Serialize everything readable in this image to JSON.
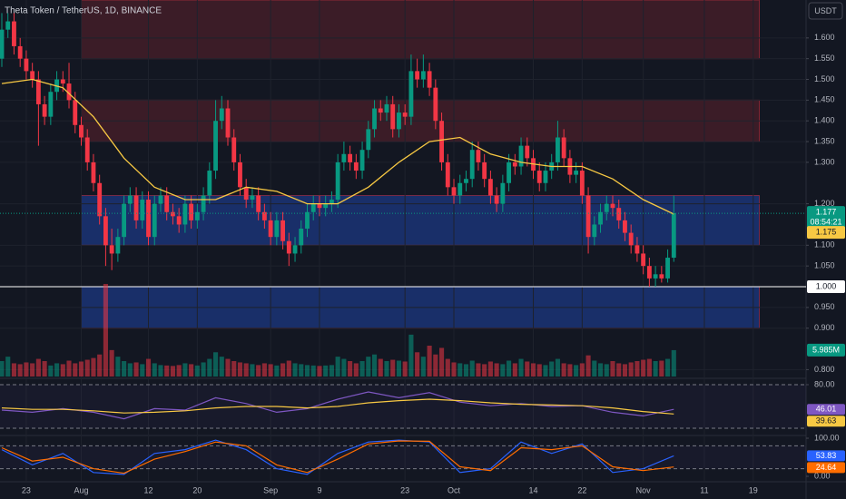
{
  "header": {
    "title": "Theta Token / TetherUS, 1D, BINANCE",
    "quote_currency": "USDT",
    "countdown": "08:54:21"
  },
  "chart_data": [
    {
      "type": "candlestick",
      "up_color": "#089981",
      "down_color": "#f23645",
      "grid": true,
      "xlim": [
        -0.297,
        131.65
      ],
      "ylim": [
        0.7834,
        1.6915
      ],
      "xticks": [
        {
          "value": 4,
          "label": "23"
        },
        {
          "value": 13,
          "label": "Aug"
        },
        {
          "value": 24,
          "label": "12"
        },
        {
          "value": 32,
          "label": "20"
        },
        {
          "value": 44,
          "label": "Sep"
        },
        {
          "value": 52,
          "label": "9"
        },
        {
          "value": 66,
          "label": "23"
        },
        {
          "value": 74,
          "label": "Oct"
        },
        {
          "value": 87,
          "label": "14"
        },
        {
          "value": 95,
          "label": "22"
        },
        {
          "value": 105,
          "label": "Nov"
        },
        {
          "value": 115,
          "label": "11"
        },
        {
          "value": 123,
          "label": "19"
        }
      ],
      "yticks": [
        {
          "value": 1.6,
          "label": "1.600"
        },
        {
          "value": 1.55,
          "label": "1.550"
        },
        {
          "value": 1.5,
          "label": "1.500"
        },
        {
          "value": 1.45,
          "label": "1.450"
        },
        {
          "value": 1.4,
          "label": "1.400"
        },
        {
          "value": 1.35,
          "label": "1.350"
        },
        {
          "value": 1.3,
          "label": "1.300"
        },
        {
          "value": 1.2,
          "label": "1.200"
        },
        {
          "value": 1.1,
          "label": "1.100"
        },
        {
          "value": 1.05,
          "label": "1.050"
        },
        {
          "value": 0.95,
          "label": "0.950"
        },
        {
          "value": 0.9,
          "label": "0.900"
        },
        {
          "value": 0.8,
          "label": "0.800"
        }
      ],
      "open": [
        1.55,
        1.62,
        1.64,
        1.58,
        1.55,
        1.52,
        1.5,
        1.44,
        1.41,
        1.47,
        1.5,
        1.49,
        1.45,
        1.39,
        1.36,
        1.3,
        1.25,
        1.17,
        1.1,
        1.08,
        1.12,
        1.2,
        1.22,
        1.16,
        1.21,
        1.12,
        1.2,
        1.22,
        1.18,
        1.17,
        1.15,
        1.2,
        1.16,
        1.18,
        1.22,
        1.28,
        1.4,
        1.43,
        1.36,
        1.3,
        1.24,
        1.21,
        1.22,
        1.18,
        1.16,
        1.12,
        1.16,
        1.11,
        1.08,
        1.1,
        1.14,
        1.18,
        1.2,
        1.19,
        1.2,
        1.21,
        1.3,
        1.32,
        1.3,
        1.28,
        1.33,
        1.38,
        1.43,
        1.42,
        1.44,
        1.38,
        1.42,
        1.41,
        1.52,
        1.5,
        1.52,
        1.48,
        1.4,
        1.3,
        1.24,
        1.22,
        1.25,
        1.26,
        1.33,
        1.3,
        1.26,
        1.22,
        1.2,
        1.25,
        1.3,
        1.29,
        1.34,
        1.31,
        1.28,
        1.25,
        1.28,
        1.3,
        1.36,
        1.31,
        1.27,
        1.28,
        1.22,
        1.12,
        1.15,
        1.18,
        1.2,
        1.19,
        1.16,
        1.13,
        1.1,
        1.08,
        1.05,
        1.02,
        1.03,
        1.02,
        1.07
      ],
      "high": [
        1.66,
        1.66,
        1.66,
        1.6,
        1.57,
        1.54,
        1.52,
        1.46,
        1.49,
        1.52,
        1.52,
        1.54,
        1.47,
        1.41,
        1.38,
        1.32,
        1.27,
        1.19,
        1.14,
        1.14,
        1.22,
        1.24,
        1.24,
        1.23,
        1.23,
        1.22,
        1.24,
        1.24,
        1.2,
        1.19,
        1.22,
        1.22,
        1.2,
        1.24,
        1.3,
        1.45,
        1.46,
        1.45,
        1.38,
        1.32,
        1.26,
        1.24,
        1.24,
        1.2,
        1.18,
        1.18,
        1.18,
        1.13,
        1.12,
        1.16,
        1.2,
        1.22,
        1.22,
        1.22,
        1.23,
        1.32,
        1.35,
        1.34,
        1.32,
        1.35,
        1.4,
        1.45,
        1.45,
        1.46,
        1.46,
        1.44,
        1.44,
        1.56,
        1.55,
        1.56,
        1.54,
        1.5,
        1.42,
        1.32,
        1.26,
        1.27,
        1.28,
        1.35,
        1.35,
        1.32,
        1.28,
        1.24,
        1.27,
        1.32,
        1.32,
        1.36,
        1.36,
        1.33,
        1.3,
        1.3,
        1.32,
        1.4,
        1.38,
        1.33,
        1.3,
        1.3,
        1.24,
        1.17,
        1.2,
        1.22,
        1.22,
        1.21,
        1.18,
        1.15,
        1.12,
        1.1,
        1.07,
        1.05,
        1.05,
        1.09,
        1.22
      ],
      "low": [
        1.53,
        1.6,
        1.56,
        1.53,
        1.5,
        1.48,
        1.34,
        1.39,
        1.39,
        1.45,
        1.47,
        1.43,
        1.37,
        1.34,
        1.28,
        1.23,
        1.15,
        1.05,
        1.04,
        1.06,
        1.1,
        1.18,
        1.14,
        1.14,
        1.1,
        1.1,
        1.18,
        1.16,
        1.15,
        1.13,
        1.13,
        1.14,
        1.14,
        1.16,
        1.2,
        1.26,
        1.38,
        1.34,
        1.28,
        1.22,
        1.19,
        1.19,
        1.16,
        1.14,
        1.1,
        1.1,
        1.09,
        1.05,
        1.06,
        1.08,
        1.12,
        1.16,
        1.17,
        1.17,
        1.18,
        1.19,
        1.28,
        1.28,
        1.26,
        1.26,
        1.31,
        1.36,
        1.4,
        1.4,
        1.36,
        1.36,
        1.39,
        1.39,
        1.48,
        1.48,
        1.46,
        1.38,
        1.28,
        1.22,
        1.2,
        1.2,
        1.23,
        1.24,
        1.28,
        1.24,
        1.2,
        1.18,
        1.18,
        1.23,
        1.27,
        1.27,
        1.29,
        1.26,
        1.23,
        1.23,
        1.26,
        1.28,
        1.29,
        1.25,
        1.25,
        1.2,
        1.08,
        1.1,
        1.13,
        1.16,
        1.17,
        1.14,
        1.11,
        1.08,
        1.06,
        1.03,
        1.0,
        1.0,
        1.01,
        1.01,
        1.06
      ],
      "close": [
        1.62,
        1.64,
        1.58,
        1.55,
        1.52,
        1.5,
        1.44,
        1.41,
        1.47,
        1.5,
        1.49,
        1.45,
        1.39,
        1.36,
        1.3,
        1.25,
        1.17,
        1.1,
        1.08,
        1.12,
        1.2,
        1.22,
        1.16,
        1.21,
        1.12,
        1.2,
        1.22,
        1.18,
        1.17,
        1.15,
        1.2,
        1.16,
        1.18,
        1.22,
        1.28,
        1.4,
        1.43,
        1.36,
        1.3,
        1.24,
        1.21,
        1.22,
        1.18,
        1.16,
        1.12,
        1.16,
        1.11,
        1.08,
        1.1,
        1.14,
        1.18,
        1.2,
        1.19,
        1.2,
        1.21,
        1.3,
        1.32,
        1.3,
        1.28,
        1.33,
        1.38,
        1.43,
        1.42,
        1.44,
        1.38,
        1.42,
        1.41,
        1.52,
        1.5,
        1.52,
        1.48,
        1.4,
        1.3,
        1.24,
        1.22,
        1.25,
        1.26,
        1.33,
        1.3,
        1.26,
        1.22,
        1.2,
        1.25,
        1.3,
        1.29,
        1.34,
        1.31,
        1.28,
        1.25,
        1.28,
        1.3,
        1.36,
        1.31,
        1.27,
        1.28,
        1.22,
        1.12,
        1.15,
        1.18,
        1.2,
        1.19,
        1.16,
        1.13,
        1.1,
        1.08,
        1.05,
        1.02,
        1.03,
        1.02,
        1.07,
        1.177
      ],
      "moving_average": {
        "color": "#f7c843",
        "x": [
          0,
          5,
          10,
          15,
          20,
          25,
          30,
          35,
          40,
          45,
          50,
          55,
          60,
          65,
          70,
          75,
          80,
          85,
          90,
          95,
          100,
          105,
          110
        ],
        "values": [
          1.49,
          1.5,
          1.48,
          1.41,
          1.31,
          1.24,
          1.21,
          1.21,
          1.24,
          1.23,
          1.2,
          1.2,
          1.24,
          1.3,
          1.35,
          1.36,
          1.32,
          1.3,
          1.29,
          1.29,
          1.26,
          1.21,
          1.175
        ]
      },
      "zones": [
        {
          "from": 1.55,
          "to": 1.7,
          "start": 13,
          "end": 124,
          "color": "#f23645"
        },
        {
          "from": 1.35,
          "to": 1.45,
          "start": 13,
          "end": 124,
          "color": "#f23645"
        },
        {
          "from": 1.1,
          "to": 1.22,
          "start": 13,
          "end": 124,
          "color": "#2962ff"
        },
        {
          "from": 0.9,
          "to": 1.0,
          "start": 13,
          "end": 124,
          "color": "#2962ff"
        }
      ],
      "hline": {
        "value": 1,
        "label": "1.000",
        "color": "#ffffff"
      }
    },
    {
      "type": "bar",
      "up_color": "#089981",
      "down_color": "#f23645",
      "ylim": [
        0,
        21
      ],
      "values": [
        3.5,
        4.5,
        3.0,
        2.8,
        3.2,
        3.0,
        4.0,
        3.5,
        2.5,
        3.0,
        2.8,
        3.6,
        3.0,
        3.4,
        3.8,
        4.2,
        5.0,
        21,
        6.0,
        4.5,
        3.5,
        3.0,
        3.2,
        2.8,
        4.0,
        3.0,
        2.6,
        2.5,
        2.4,
        2.6,
        3.0,
        2.8,
        2.5,
        3.2,
        4.0,
        5.5,
        4.5,
        4.0,
        3.5,
        3.2,
        3.0,
        2.8,
        2.6,
        3.0,
        2.8,
        2.5,
        3.0,
        3.6,
        3.0,
        2.8,
        2.6,
        2.5,
        2.4,
        2.5,
        2.6,
        4.5,
        4.0,
        3.5,
        3.0,
        3.5,
        4.5,
        5.0,
        4.0,
        3.5,
        3.8,
        3.6,
        3.4,
        9.5,
        5.5,
        4.5,
        7.0,
        5.0,
        6.5,
        4.0,
        3.2,
        3.0,
        2.8,
        3.6,
        3.0,
        2.8,
        3.4,
        3.0,
        2.8,
        3.6,
        3.0,
        4.0,
        3.4,
        3.0,
        2.8,
        2.6,
        3.4,
        4.0,
        3.0,
        2.8,
        2.6,
        3.0,
        4.8,
        3.6,
        3.0,
        2.8,
        3.5,
        3.0,
        2.8,
        3.2,
        3.5,
        3.8,
        4.0,
        3.5,
        3.6,
        4.0,
        5.985
      ],
      "last_value_label": "5.985M"
    },
    {
      "type": "line",
      "ylim": [
        10,
        87.5
      ],
      "yticks": [
        {
          "value": 80,
          "label": "80.00"
        }
      ],
      "levels": [
        80,
        20
      ],
      "x": [
        0,
        5,
        10,
        15,
        20,
        25,
        30,
        35,
        40,
        45,
        50,
        55,
        60,
        65,
        70,
        75,
        80,
        85,
        90,
        95,
        100,
        105,
        110
      ],
      "series": [
        {
          "color": "#7e57c2",
          "values": [
            45,
            42,
            47,
            42,
            33,
            47,
            45,
            62,
            54,
            42,
            47,
            60,
            70,
            62,
            69,
            56,
            51,
            54,
            50,
            51,
            42,
            37,
            46.01
          ]
        },
        {
          "color": "#f7c843",
          "values": [
            48,
            46,
            46,
            44,
            41,
            42,
            44,
            48,
            50,
            50,
            48,
            50,
            55,
            58,
            60,
            58,
            55,
            53,
            52,
            51,
            48,
            43,
            39.63
          ]
        }
      ]
    },
    {
      "type": "line",
      "ylim": [
        -11.9,
        104.8
      ],
      "yticks": [
        {
          "value": 100,
          "label": "100.00"
        },
        {
          "value": 0,
          "label": "0.00"
        }
      ],
      "levels": [
        80,
        20
      ],
      "x": [
        0,
        5,
        10,
        15,
        20,
        25,
        30,
        35,
        40,
        45,
        50,
        55,
        60,
        65,
        70,
        75,
        80,
        85,
        90,
        95,
        100,
        105,
        110
      ],
      "series": [
        {
          "color": "#2962ff",
          "values": [
            70,
            30,
            60,
            10,
            5,
            60,
            70,
            95,
            70,
            20,
            5,
            60,
            90,
            95,
            90,
            10,
            20,
            90,
            60,
            85,
            10,
            20,
            53.83
          ]
        },
        {
          "color": "#ff6d00",
          "values": [
            75,
            40,
            50,
            20,
            8,
            45,
            65,
            90,
            80,
            30,
            10,
            45,
            85,
            93,
            92,
            25,
            15,
            75,
            70,
            80,
            25,
            15,
            24.64
          ]
        }
      ]
    }
  ]
}
